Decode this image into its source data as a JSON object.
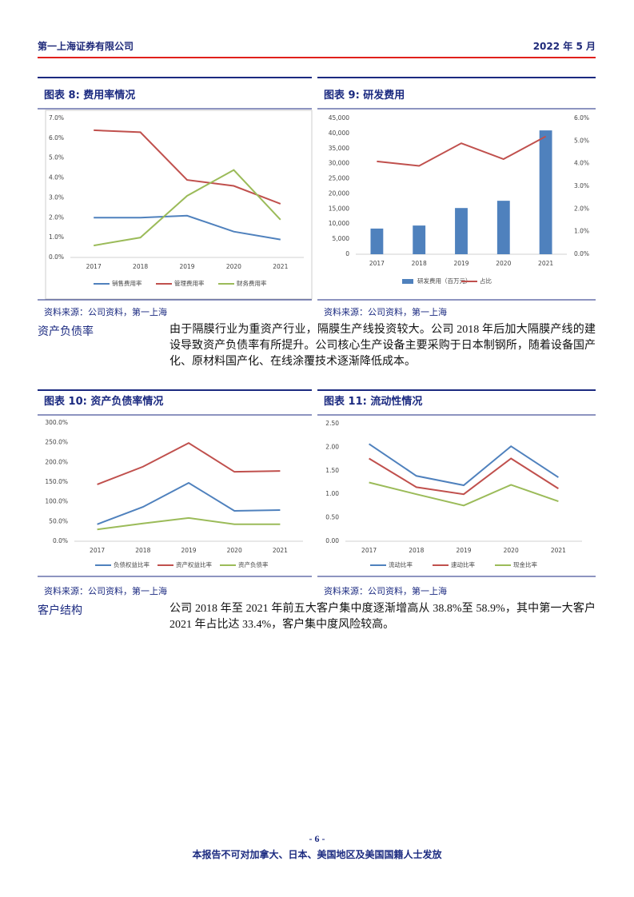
{
  "header": {
    "company": "第一上海证券有限公司",
    "date": "2022 年 5 月"
  },
  "chart_data": [
    {
      "type": "line",
      "title": "图表 8: 费用率情况",
      "source": "资料来源：公司资料，第一上海",
      "categories": [
        "2017",
        "2018",
        "2019",
        "2020",
        "2021"
      ],
      "ylim": [
        0,
        7
      ],
      "yticks": [
        {
          "value": 0,
          "label": "0.0%"
        },
        {
          "value": 1,
          "label": "1.0%"
        },
        {
          "value": 2,
          "label": "2.0%"
        },
        {
          "value": 3,
          "label": "3.0%"
        },
        {
          "value": 4,
          "label": "4.0%"
        },
        {
          "value": 5,
          "label": "5.0%"
        },
        {
          "value": 6,
          "label": "6.0%"
        },
        {
          "value": 7,
          "label": "7.0%"
        }
      ],
      "legend": "bottom",
      "series": [
        {
          "name": "销售费用率",
          "color": "#4f81bd",
          "values": [
            2.0,
            2.0,
            2.1,
            1.3,
            0.9
          ]
        },
        {
          "name": "管理费用率",
          "color": "#c0504d",
          "values": [
            6.4,
            6.3,
            3.9,
            3.6,
            2.7
          ]
        },
        {
          "name": "财务费用率",
          "color": "#9bbb59",
          "values": [
            0.6,
            1.0,
            3.1,
            4.4,
            1.9
          ]
        }
      ]
    },
    {
      "type": "bar",
      "title": "图表 9: 研发费用",
      "source": "资料来源：公司资料，第一上海",
      "categories": [
        "2017",
        "2018",
        "2019",
        "2020",
        "2021"
      ],
      "ylim": [
        0,
        45000
      ],
      "yticks": [
        0,
        {
          "value": 5000,
          "label": "5,000"
        },
        {
          "value": 10000,
          "label": "10,000"
        },
        {
          "value": 15000,
          "label": "15,000"
        },
        {
          "value": 20000,
          "label": "20,000"
        },
        {
          "value": 25000,
          "label": "25,000"
        },
        {
          "value": 30000,
          "label": "30,000"
        },
        {
          "value": 35000,
          "label": "35,000"
        },
        {
          "value": 40000,
          "label": "40,000"
        },
        {
          "value": 45000,
          "label": "45,000"
        }
      ],
      "y2lim": [
        0,
        6
      ],
      "y2ticks": [
        {
          "value": 0,
          "label": "0.0%"
        },
        {
          "value": 1,
          "label": "1.0%"
        },
        {
          "value": 2,
          "label": "2.0%"
        },
        {
          "value": 3,
          "label": "3.0%"
        },
        {
          "value": 4,
          "label": "4.0%"
        },
        {
          "value": 5,
          "label": "5.0%"
        },
        {
          "value": 6,
          "label": "6.0%"
        }
      ],
      "legend": "bottom",
      "series": [
        {
          "name": "研发费用（百万元）",
          "color": "#4f81bd",
          "values": [
            8500,
            9500,
            15300,
            17700,
            41000
          ]
        },
        {
          "name": "占比",
          "type": "line",
          "axis": "y2",
          "color": "#c0504d",
          "values": [
            4.1,
            3.9,
            4.9,
            4.2,
            5.2
          ]
        }
      ]
    },
    {
      "type": "line",
      "title": "图表 10: 资产负债率情况",
      "source": "资料来源：公司资料，第一上海",
      "categories": [
        "2017",
        "2018",
        "2019",
        "2020",
        "2021"
      ],
      "ylim": [
        0,
        300
      ],
      "yticks": [
        {
          "value": 0,
          "label": "0.0%"
        },
        {
          "value": 50,
          "label": "50.0%"
        },
        {
          "value": 100,
          "label": "100.0%"
        },
        {
          "value": 150,
          "label": "150.0%"
        },
        {
          "value": 200,
          "label": "200.0%"
        },
        {
          "value": 250,
          "label": "250.0%"
        },
        {
          "value": 300,
          "label": "300.0%"
        }
      ],
      "legend": "bottom",
      "series": [
        {
          "name": "负债权益比率",
          "color": "#4f81bd",
          "values": [
            43,
            87,
            148,
            77,
            79
          ]
        },
        {
          "name": "资产权益比率",
          "color": "#c0504d",
          "values": [
            144,
            189,
            249,
            176,
            178
          ]
        },
        {
          "name": "资产负债率",
          "color": "#9bbb59",
          "values": [
            30,
            45,
            59,
            43,
            43
          ]
        }
      ]
    },
    {
      "type": "line",
      "title": "图表 11: 流动性情况",
      "source": "资料来源：公司资料，第一上海",
      "categories": [
        "2017",
        "2018",
        "2019",
        "2020",
        "2021"
      ],
      "ylim": [
        0,
        2.5
      ],
      "yticks": [
        {
          "value": 0,
          "label": "0.00"
        },
        {
          "value": 0.5,
          "label": "0.50"
        },
        {
          "value": 1,
          "label": "1.00"
        },
        {
          "value": 1.5,
          "label": "1.50"
        },
        {
          "value": 2,
          "label": "2.00"
        },
        {
          "value": 2.5,
          "label": "2.50"
        }
      ],
      "legend": "bottom",
      "series": [
        {
          "name": "流动比率",
          "color": "#4f81bd",
          "values": [
            2.07,
            1.39,
            1.19,
            2.02,
            1.36
          ]
        },
        {
          "name": "速动比率",
          "color": "#c0504d",
          "values": [
            1.76,
            1.15,
            1.0,
            1.76,
            1.12
          ]
        },
        {
          "name": "现金比率",
          "color": "#9bbb59",
          "values": [
            1.25,
            1.0,
            0.76,
            1.2,
            0.85
          ]
        }
      ]
    }
  ],
  "sections": [
    {
      "label": "资产负债率",
      "text": "由于隔膜行业为重资产行业，隔膜生产线投资较大。公司 2018 年后加大隔膜产线的建设导致资产负债率有所提升。公司核心生产设备主要采购于日本制钢所，随着设备国产化、原材料国产化、在线涂覆技术逐渐降低成本。"
    },
    {
      "label": "客户结构",
      "text": "公司 2018 年至 2021 年前五大客户集中度逐渐增高从 38.8%至 58.9%，其中第一大客户 2021 年占比达 33.4%，客户集中度风险较高。"
    }
  ],
  "footer": {
    "page": "- 6 -",
    "notice": "本报告不可对加拿大、日本、美国地区及美国国籍人士发放"
  }
}
